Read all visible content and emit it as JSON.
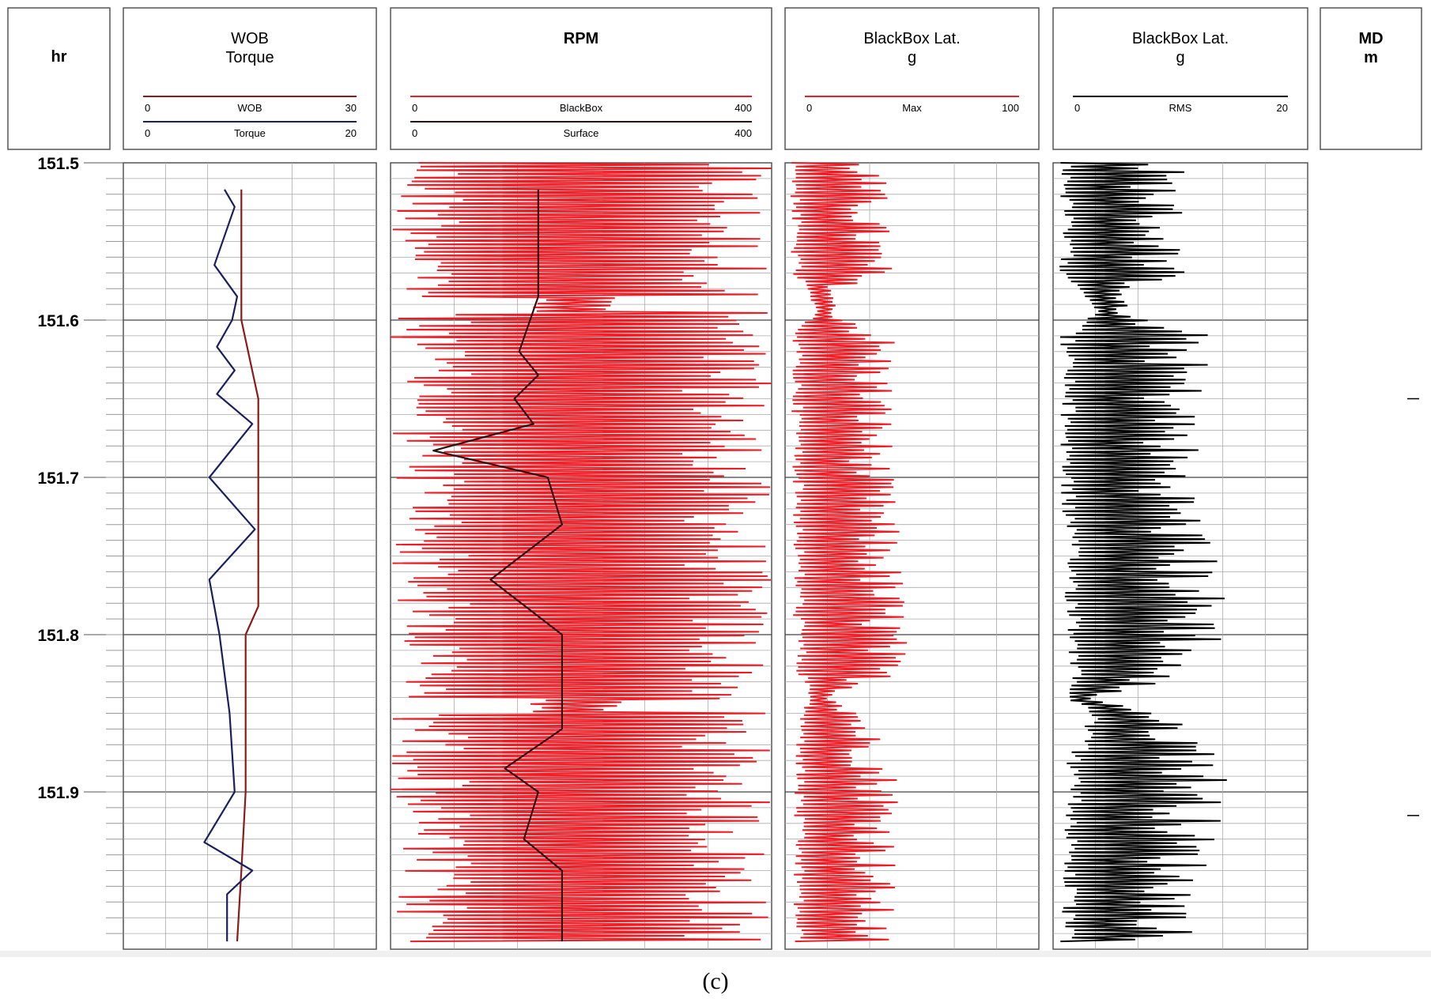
{
  "caption": "(c)",
  "colors": {
    "wob": "#8b1a1a",
    "torque": "#1a1f5e",
    "blackbox_rpm": "#ee1c25",
    "surface_rpm": "#2a1010",
    "lat_max": "#ee1c25",
    "lat_rms": "#000000",
    "frame": "#555555",
    "grid": "#999999"
  },
  "chart_data": {
    "type": "line",
    "orientation": "vertical-depth-log",
    "time_axis": {
      "label": "hr",
      "range": [
        151.5,
        152.0
      ],
      "ticks": [
        "151.5",
        "151.6",
        "151.7",
        "151.8",
        "151.9"
      ],
      "tick_values": [
        151.5,
        151.6,
        151.7,
        151.8,
        151.9
      ]
    },
    "tracks": [
      {
        "id": "wob_torque",
        "title_lines": [
          "WOB",
          "Torque"
        ],
        "scales": [
          {
            "name": "WOB",
            "min": 0,
            "max": 30,
            "min_label": "0",
            "max_label": "30",
            "color_key": "wob"
          },
          {
            "name": "Torque",
            "min": 0,
            "max": 20,
            "min_label": "0",
            "max_label": "20",
            "color_key": "torque"
          }
        ],
        "series": [
          {
            "name": "WOB",
            "scale": 0,
            "color_key": "wob",
            "style": "line",
            "t": [
              151.517,
              151.6,
              151.65,
              151.782,
              151.8,
              151.9,
              151.95,
              151.995
            ],
            "values": [
              14.0,
              14.0,
              16.0,
              16.0,
              14.5,
              14.5,
              14.0,
              13.5
            ]
          },
          {
            "name": "Torque",
            "scale": 1,
            "color_key": "torque",
            "style": "line",
            "t": [
              151.517,
              151.528,
              151.565,
              151.585,
              151.6,
              151.617,
              151.632,
              151.647,
              151.666,
              151.7,
              151.733,
              151.765,
              151.8,
              151.85,
              151.9,
              151.932,
              151.95,
              151.965,
              151.995
            ],
            "values": [
              8.0,
              8.8,
              7.2,
              9.0,
              8.6,
              7.4,
              8.8,
              7.4,
              10.2,
              6.8,
              10.4,
              6.8,
              7.6,
              8.4,
              8.8,
              6.4,
              10.2,
              8.2,
              8.2
            ]
          }
        ]
      },
      {
        "id": "rpm",
        "title_lines": [
          "RPM"
        ],
        "scales": [
          {
            "name": "BlackBox",
            "min": 0,
            "max": 400,
            "min_label": "0",
            "max_label": "400",
            "color_key": "blackbox_rpm"
          },
          {
            "name": "Surface",
            "min": 0,
            "max": 400,
            "min_label": "0",
            "max_label": "400",
            "color_key": "surface_rpm"
          }
        ],
        "series": [
          {
            "name": "BlackBox",
            "scale": 0,
            "color_key": "blackbox_rpm",
            "style": "oscillation-band",
            "t_range": [
              151.5,
              151.995
            ],
            "mean": 190,
            "swing_min": 0,
            "swing_max": 400
          },
          {
            "name": "Surface",
            "scale": 1,
            "color_key": "surface_rpm",
            "style": "line",
            "t": [
              151.517,
              151.585,
              151.62,
              151.635,
              151.65,
              151.666,
              151.683,
              151.7,
              151.73,
              151.765,
              151.8,
              151.85,
              151.86,
              151.885,
              151.9,
              151.93,
              151.95,
              151.995
            ],
            "values": [
              155,
              155,
              135,
              155,
              130,
              150,
              45,
              165,
              180,
              105,
              180,
              180,
              180,
              120,
              155,
              140,
              180,
              180
            ]
          }
        ]
      },
      {
        "id": "lat_max",
        "title_lines": [
          "BlackBox Lat.",
          "g"
        ],
        "scales": [
          {
            "name": "Max",
            "min": 0,
            "max": 100,
            "min_label": "0",
            "max_label": "100",
            "color_key": "lat_max"
          }
        ],
        "series": [
          {
            "name": "Max",
            "scale": 0,
            "color_key": "lat_max",
            "style": "oscillation-band",
            "t_range": [
              151.5,
              151.995
            ],
            "envelope": [
              {
                "t": 151.5,
                "lo": 2,
                "hi": 40
              },
              {
                "t": 151.57,
                "lo": 2,
                "hi": 43
              },
              {
                "t": 151.58,
                "lo": 8,
                "hi": 22
              },
              {
                "t": 151.595,
                "lo": 12,
                "hi": 20
              },
              {
                "t": 151.61,
                "lo": 2,
                "hi": 45
              },
              {
                "t": 151.7,
                "lo": 3,
                "hi": 43
              },
              {
                "t": 151.8,
                "lo": 3,
                "hi": 50
              },
              {
                "t": 151.825,
                "lo": 4,
                "hi": 46
              },
              {
                "t": 151.84,
                "lo": 10,
                "hi": 20
              },
              {
                "t": 151.85,
                "lo": 5,
                "hi": 35
              },
              {
                "t": 151.9,
                "lo": 3,
                "hi": 48
              },
              {
                "t": 151.995,
                "lo": 3,
                "hi": 42
              }
            ]
          }
        ]
      },
      {
        "id": "lat_rms",
        "title_lines": [
          "BlackBox Lat.",
          "g"
        ],
        "scales": [
          {
            "name": "RMS",
            "min": 0,
            "max": 20,
            "min_label": "0",
            "max_label": "20",
            "color_key": "lat_rms"
          }
        ],
        "series": [
          {
            "name": "RMS",
            "scale": 0,
            "color_key": "lat_rms",
            "style": "oscillation-band",
            "t_range": [
              151.5,
              151.995
            ],
            "envelope": [
              {
                "t": 151.5,
                "lo": 0.5,
                "hi": 10.5
              },
              {
                "t": 151.57,
                "lo": 0.5,
                "hi": 10.5
              },
              {
                "t": 151.585,
                "lo": 2.5,
                "hi": 6.5
              },
              {
                "t": 151.595,
                "lo": 3.5,
                "hi": 5.5
              },
              {
                "t": 151.61,
                "lo": 0.5,
                "hi": 12.5
              },
              {
                "t": 151.7,
                "lo": 0.5,
                "hi": 11.5
              },
              {
                "t": 151.8,
                "lo": 1.0,
                "hi": 14.5
              },
              {
                "t": 151.83,
                "lo": 1.5,
                "hi": 9.0
              },
              {
                "t": 151.84,
                "lo": 1.0,
                "hi": 3.5
              },
              {
                "t": 151.85,
                "lo": 3.0,
                "hi": 9.0
              },
              {
                "t": 151.88,
                "lo": 1.0,
                "hi": 14.5
              },
              {
                "t": 151.995,
                "lo": 0.5,
                "hi": 11.0
              }
            ]
          }
        ]
      },
      {
        "id": "md",
        "title_lines": [
          "MD",
          "m"
        ],
        "scales": [],
        "markers": [
          151.65,
          151.915
        ]
      }
    ]
  }
}
